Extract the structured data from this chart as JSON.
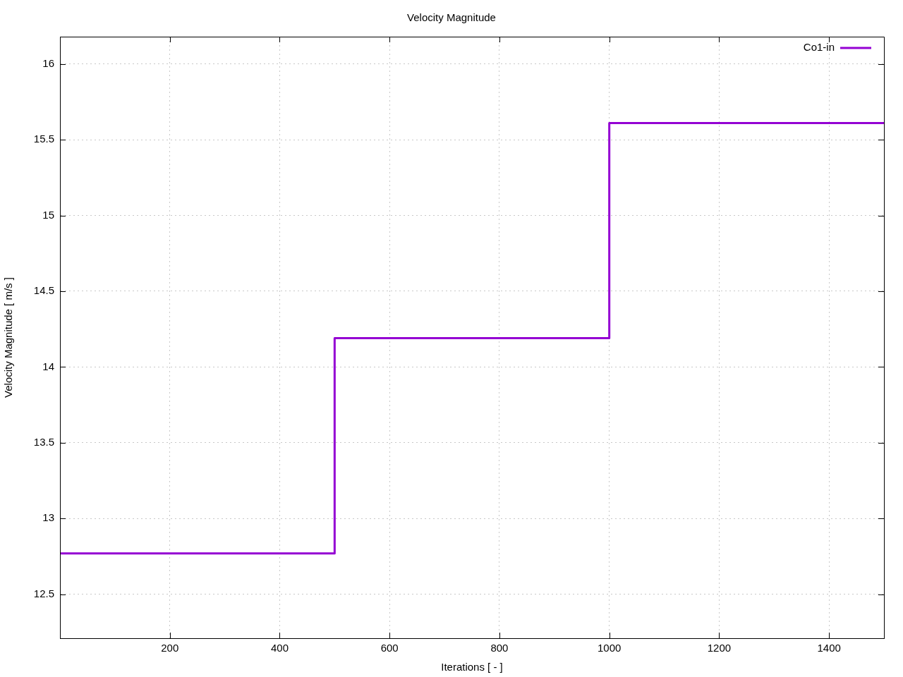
{
  "chart_data": {
    "type": "step",
    "title": "Velocity Magnitude",
    "xlabel": "Iterations [ - ]",
    "ylabel": "Velocity Magnitude [ m/s ]",
    "x": [
      0,
      500,
      1000,
      1500
    ],
    "series": [
      {
        "name": "Co1-in",
        "color": "#9400d3",
        "values": [
          12.77,
          14.19,
          15.61,
          15.61
        ]
      }
    ],
    "xlim": [
      0,
      1500
    ],
    "xticks": [
      200,
      400,
      600,
      800,
      1000,
      1200,
      1400
    ],
    "ylim": [
      12.21,
      16.18
    ],
    "yticks": [
      12.5,
      13,
      13.5,
      14,
      14.5,
      15,
      15.5,
      16
    ],
    "grid": true,
    "legend": "top right"
  }
}
